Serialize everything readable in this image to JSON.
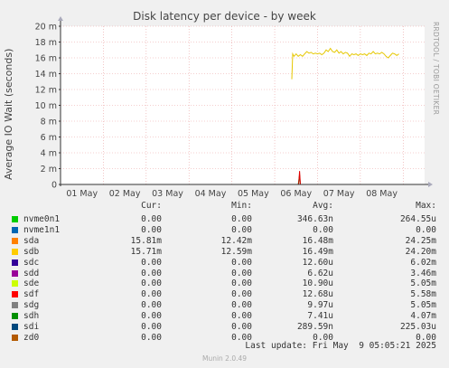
{
  "chart_data": {
    "type": "line",
    "title": "Disk latency per device - by week",
    "ylabel": "Average IO Wait (seconds)",
    "right_text": "RRDTOOL / TOBI OETIKER",
    "ylim": [
      0,
      0.02
    ],
    "y_ticks": [
      {
        "value": 0,
        "label": "0"
      },
      {
        "value": 0.002,
        "label": "2 m"
      },
      {
        "value": 0.004,
        "label": "4 m"
      },
      {
        "value": 0.006,
        "label": "6 m"
      },
      {
        "value": 0.008,
        "label": "8 m"
      },
      {
        "value": 0.01,
        "label": "10 m"
      },
      {
        "value": 0.012,
        "label": "12 m"
      },
      {
        "value": 0.014,
        "label": "14 m"
      },
      {
        "value": 0.016,
        "label": "16 m"
      },
      {
        "value": 0.018,
        "label": "18 m"
      },
      {
        "value": 0.02,
        "label": "20 m"
      }
    ],
    "x_range_days": [
      0,
      8.5
    ],
    "x_ticks": [
      {
        "day": 0.5,
        "label": "01 May"
      },
      {
        "day": 1.5,
        "label": "02 May"
      },
      {
        "day": 2.5,
        "label": "03 May"
      },
      {
        "day": 3.5,
        "label": "04 May"
      },
      {
        "day": 4.5,
        "label": "05 May"
      },
      {
        "day": 5.5,
        "label": "06 May"
      },
      {
        "day": 6.5,
        "label": "07 May"
      },
      {
        "day": 7.5,
        "label": "08 May"
      }
    ],
    "series": [
      {
        "name": "sdb",
        "color": "#e6c700",
        "points": [
          [
            5.4,
            0.0133
          ],
          [
            5.42,
            0.0165
          ],
          [
            5.45,
            0.0162
          ],
          [
            5.5,
            0.0165
          ],
          [
            5.55,
            0.0162
          ],
          [
            5.6,
            0.0164
          ],
          [
            5.65,
            0.0162
          ],
          [
            5.7,
            0.0165
          ],
          [
            5.75,
            0.0168
          ],
          [
            5.8,
            0.0166
          ],
          [
            5.85,
            0.0167
          ],
          [
            5.9,
            0.0165
          ],
          [
            5.95,
            0.0166
          ],
          [
            6.0,
            0.0165
          ],
          [
            6.05,
            0.0166
          ],
          [
            6.1,
            0.0164
          ],
          [
            6.15,
            0.0166
          ],
          [
            6.2,
            0.017
          ],
          [
            6.25,
            0.0168
          ],
          [
            6.3,
            0.0172
          ],
          [
            6.35,
            0.0168
          ],
          [
            6.4,
            0.0167
          ],
          [
            6.45,
            0.017
          ],
          [
            6.5,
            0.0166
          ],
          [
            6.55,
            0.0168
          ],
          [
            6.6,
            0.0165
          ],
          [
            6.65,
            0.0167
          ],
          [
            6.7,
            0.0166
          ],
          [
            6.75,
            0.0162
          ],
          [
            6.8,
            0.0165
          ],
          [
            6.85,
            0.0164
          ],
          [
            6.9,
            0.0165
          ],
          [
            6.95,
            0.0163
          ],
          [
            7.0,
            0.0165
          ],
          [
            7.05,
            0.0164
          ],
          [
            7.1,
            0.0165
          ],
          [
            7.15,
            0.0163
          ],
          [
            7.2,
            0.0166
          ],
          [
            7.25,
            0.0165
          ],
          [
            7.3,
            0.0168
          ],
          [
            7.35,
            0.0165
          ],
          [
            7.4,
            0.0166
          ],
          [
            7.45,
            0.0165
          ],
          [
            7.5,
            0.0167
          ],
          [
            7.55,
            0.0165
          ],
          [
            7.6,
            0.0162
          ],
          [
            7.65,
            0.016
          ],
          [
            7.7,
            0.0163
          ],
          [
            7.75,
            0.0166
          ],
          [
            7.8,
            0.0165
          ],
          [
            7.85,
            0.0163
          ],
          [
            7.9,
            0.0165
          ]
        ]
      },
      {
        "name": "sdh",
        "color": "#0a8a0a",
        "points": [
          [
            5.55,
            0
          ],
          [
            5.58,
            0.0012
          ],
          [
            5.6,
            0
          ]
        ]
      },
      {
        "name": "sdf",
        "color": "#e00000",
        "points": [
          [
            5.56,
            0
          ],
          [
            5.58,
            0.0017
          ],
          [
            5.6,
            0
          ]
        ]
      }
    ]
  },
  "legend": {
    "headers": {
      "cur": "Cur:",
      "min": "Min:",
      "avg": "Avg:",
      "max": "Max:"
    },
    "rows": [
      {
        "name": "nvme0n1",
        "color": "#00cc00",
        "cur": "0.00",
        "min": "0.00",
        "avg": "346.63n",
        "max": "264.55u"
      },
      {
        "name": "nvme1n1",
        "color": "#0066b3",
        "cur": "0.00",
        "min": "0.00",
        "avg": "0.00",
        "max": "0.00"
      },
      {
        "name": "sda",
        "color": "#ff8000",
        "cur": "15.81m",
        "min": "12.42m",
        "avg": "16.48m",
        "max": "24.25m"
      },
      {
        "name": "sdb",
        "color": "#ffcc00",
        "cur": "15.71m",
        "min": "12.59m",
        "avg": "16.49m",
        "max": "24.20m"
      },
      {
        "name": "sdc",
        "color": "#330099",
        "cur": "0.00",
        "min": "0.00",
        "avg": "12.60u",
        "max": "6.02m"
      },
      {
        "name": "sdd",
        "color": "#990099",
        "cur": "0.00",
        "min": "0.00",
        "avg": "6.62u",
        "max": "3.46m"
      },
      {
        "name": "sde",
        "color": "#ccff00",
        "cur": "0.00",
        "min": "0.00",
        "avg": "10.90u",
        "max": "5.05m"
      },
      {
        "name": "sdf",
        "color": "#ff0000",
        "cur": "0.00",
        "min": "0.00",
        "avg": "12.68u",
        "max": "5.58m"
      },
      {
        "name": "sdg",
        "color": "#808080",
        "cur": "0.00",
        "min": "0.00",
        "avg": "9.97u",
        "max": "5.05m"
      },
      {
        "name": "sdh",
        "color": "#008f00",
        "cur": "0.00",
        "min": "0.00",
        "avg": "7.41u",
        "max": "4.07m"
      },
      {
        "name": "sdi",
        "color": "#00487d",
        "cur": "0.00",
        "min": "0.00",
        "avg": "289.59n",
        "max": "225.03u"
      },
      {
        "name": "zd0",
        "color": "#b35a00",
        "cur": "0.00",
        "min": "0.00",
        "avg": "0.00",
        "max": "0.00"
      }
    ]
  },
  "footer": {
    "last_update": "Last update: Fri May  9 05:05:21 2025",
    "munin_version": "Munin 2.0.49"
  }
}
